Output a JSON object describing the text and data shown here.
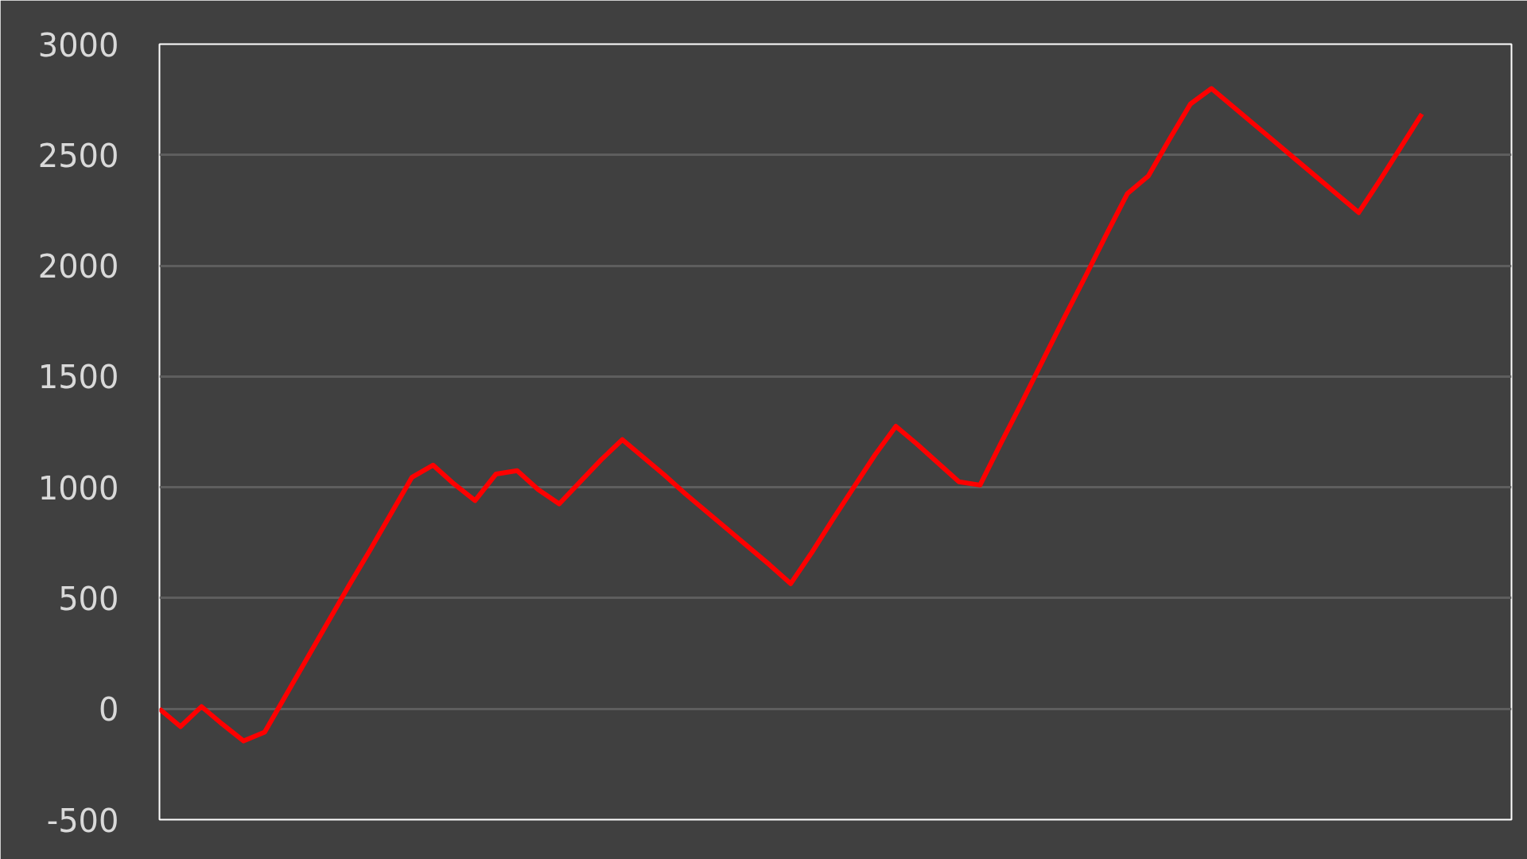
{
  "chart_data": {
    "type": "line",
    "categories": [
      null,
      null,
      null,
      null,
      null,
      null,
      null,
      null,
      null,
      null,
      null,
      null,
      null,
      null,
      null,
      null,
      null,
      null,
      null,
      null,
      null,
      null,
      null,
      null,
      null,
      null,
      null,
      null,
      null,
      null,
      null,
      null,
      null,
      null,
      null,
      null,
      null,
      null,
      null,
      null,
      null,
      null,
      null,
      null,
      null,
      null,
      null,
      null,
      null,
      null,
      null,
      null,
      null,
      null,
      null,
      null,
      null,
      null,
      null,
      null,
      null
    ],
    "series": [
      {
        "color": "#ff0000",
        "values": [
          0,
          -80,
          10,
          -70,
          -145,
          -105,
          60,
          225,
          390,
          555,
          715,
          880,
          1045,
          1100,
          1015,
          940,
          1060,
          1075,
          990,
          925,
          1025,
          1125,
          1215,
          1135,
          1055,
          970,
          890,
          810,
          730,
          650,
          565,
          705,
          855,
          1000,
          1145,
          1275,
          1195,
          1110,
          1025,
          1010,
          1200,
          1385,
          1575,
          1765,
          1950,
          2140,
          2325,
          2405,
          2570,
          2730,
          2800,
          2720,
          2640,
          2560,
          2480,
          2400,
          2320,
          2240,
          2385,
          2535,
          2685
        ]
      }
    ],
    "ylim": [
      -500,
      3000
    ],
    "yticks": [
      {
        "value": -500,
        "label": "-500"
      },
      0,
      500,
      1000,
      1500,
      2000,
      2500,
      3000
    ],
    "grid": "y",
    "tick_labels": "y",
    "marker": "none",
    "line_style": "solid"
  }
}
